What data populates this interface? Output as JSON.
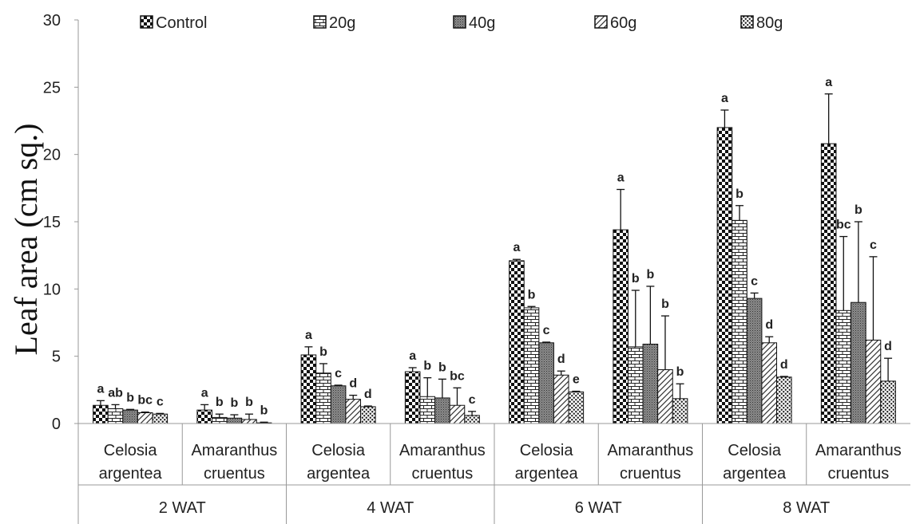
{
  "chart_data": {
    "type": "bar",
    "ylabel": "Leaf area (cm sq.)",
    "ylim": [
      0,
      30
    ],
    "yticks": [
      0,
      5,
      10,
      15,
      20,
      25,
      30
    ],
    "legend_position": "top",
    "groups": [
      {
        "label": "2 WAT",
        "categories": [
          "Celosia argentea",
          "Amaranthus cruentus"
        ]
      },
      {
        "label": "4 WAT",
        "categories": [
          "Celosia argentea",
          "Amaranthus cruentus"
        ]
      },
      {
        "label": "6 WAT",
        "categories": [
          "Celosia argentea",
          "Amaranthus cruentus"
        ]
      },
      {
        "label": "8 WAT",
        "categories": [
          "Celosia argentea",
          "Amaranthus cruentus"
        ]
      }
    ],
    "category_lines": [
      [
        "Celosia",
        "argentea"
      ],
      [
        "Amaranthus",
        "cruentus"
      ],
      [
        "Celosia",
        "argentea"
      ],
      [
        "Amaranthus",
        "cruentus"
      ],
      [
        "Celosia",
        "argentea"
      ],
      [
        "Amaranthus",
        "cruentus"
      ],
      [
        "Celosia",
        "argentea"
      ],
      [
        "Amaranthus",
        "cruentus"
      ]
    ],
    "series": [
      {
        "name": "Control",
        "pattern": "checker",
        "values": [
          1.35,
          1.0,
          5.1,
          3.85,
          12.1,
          14.4,
          22.0,
          20.8
        ],
        "errors": [
          0.35,
          0.4,
          0.6,
          0.3,
          0.1,
          3.0,
          1.3,
          3.7
        ],
        "letters": [
          "a",
          "a",
          "a",
          "a",
          "a",
          "a",
          "a",
          "a"
        ]
      },
      {
        "name": "20g",
        "pattern": "brick",
        "values": [
          1.1,
          0.45,
          3.75,
          2.0,
          8.6,
          5.7,
          15.1,
          8.4
        ],
        "errors": [
          0.3,
          0.25,
          0.7,
          1.4,
          0.1,
          4.2,
          1.1,
          5.5
        ],
        "letters": [
          "ab",
          "b",
          "b",
          "b",
          "b",
          "b",
          "b",
          "bc"
        ]
      },
      {
        "name": "40g",
        "pattern": "dots",
        "values": [
          1.0,
          0.4,
          2.8,
          1.9,
          6.0,
          5.9,
          9.3,
          9.0
        ],
        "errors": [
          0.05,
          0.25,
          0.05,
          1.4,
          0.05,
          4.3,
          0.4,
          6.0
        ],
        "letters": [
          "b",
          "b",
          "c",
          "b",
          "c",
          "b",
          "c",
          "b"
        ]
      },
      {
        "name": "60g",
        "pattern": "diagonal",
        "values": [
          0.8,
          0.3,
          1.8,
          1.35,
          3.6,
          4.0,
          6.0,
          6.2
        ],
        "errors": [
          0.05,
          0.4,
          0.3,
          1.3,
          0.3,
          4.0,
          0.45,
          6.2
        ],
        "letters": [
          "bc",
          "b",
          "d",
          "bc",
          "d",
          "b",
          "d",
          "c"
        ]
      },
      {
        "name": "80g",
        "pattern": "crosshatch",
        "values": [
          0.7,
          0.05,
          1.25,
          0.6,
          2.35,
          1.85,
          3.45,
          3.15
        ],
        "errors": [
          0.05,
          0.05,
          0.05,
          0.3,
          0.05,
          1.1,
          0.05,
          1.7
        ],
        "letters": [
          "c",
          "b",
          "d",
          "c",
          "e",
          "b",
          "d",
          "d"
        ]
      }
    ]
  }
}
